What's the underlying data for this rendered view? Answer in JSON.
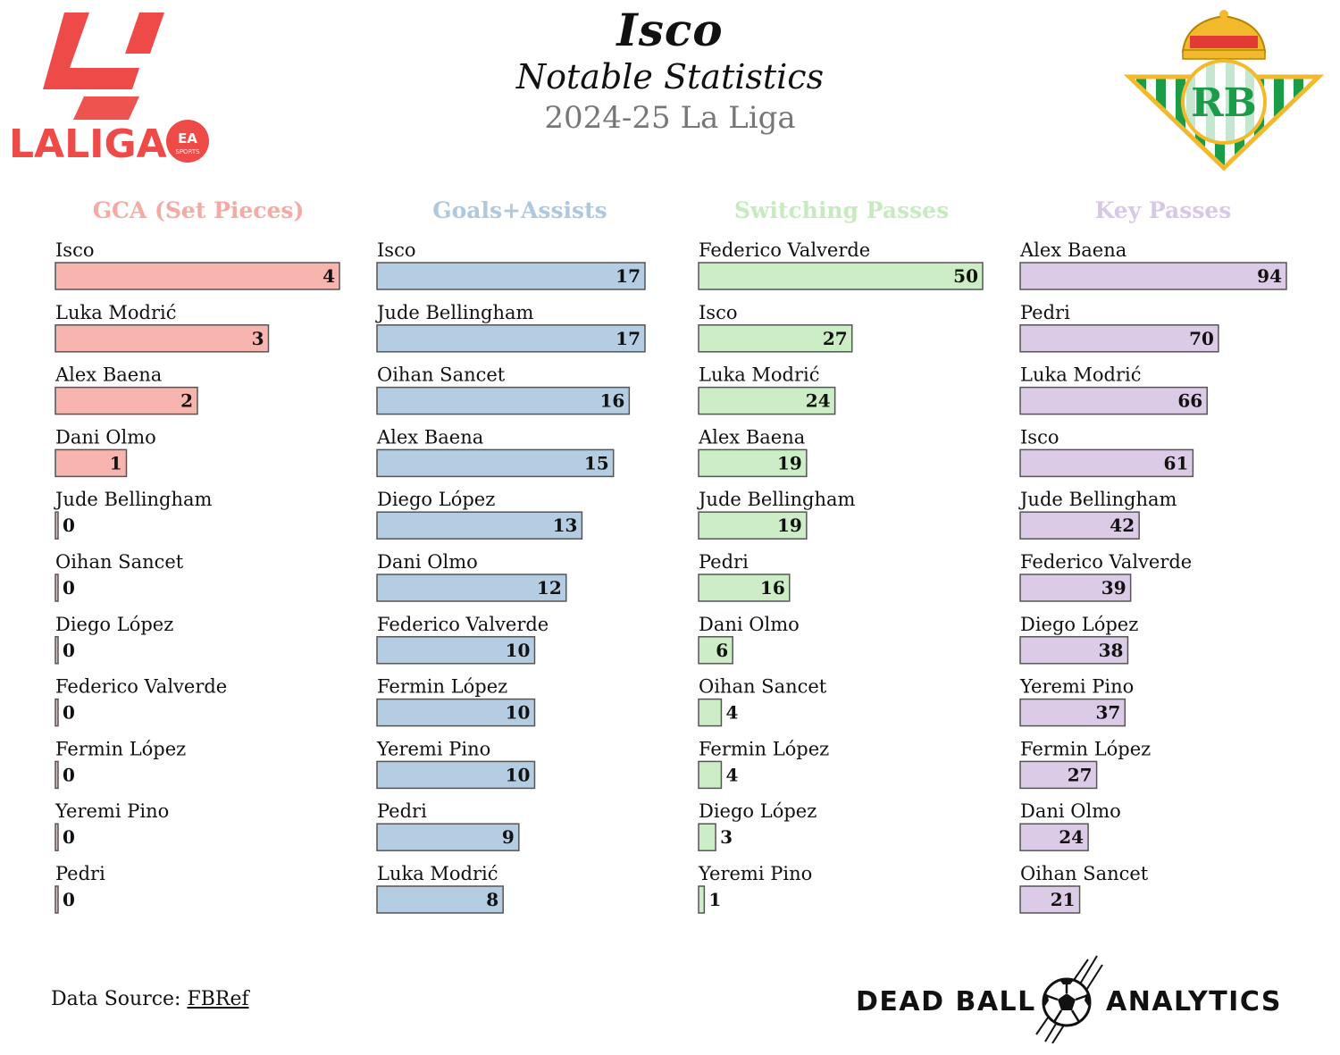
{
  "header": {
    "title": "Isco",
    "subtitle": "Notable Statistics",
    "season": "2024-25 La Liga"
  },
  "logos": {
    "league_text": "LALIGA",
    "league_badge_text": "EA",
    "league_badge_sub": "SPORTS",
    "club_monogram": "RB"
  },
  "footer": {
    "source_label": "Data Source: ",
    "source_link": "FBRef",
    "brand_left": "DEAD BALL",
    "brand_right": "ANALYTICS"
  },
  "colors": {
    "gca": "#f8b4ae",
    "ga": "#b5cde3",
    "switch": "#ccedc6",
    "key": "#dccbe6",
    "gca_title": "#f5aaa3",
    "ga_title": "#aec8e0",
    "switch_title": "#c6ebbf",
    "key_title": "#d9c7e8",
    "laliga_red": "#ee4a47",
    "betis_green": "#1a9c48",
    "crown_gold": "#f2b92c"
  },
  "chart_data": [
    {
      "type": "bar",
      "orientation": "horizontal",
      "title": "GCA (Set Pieces)",
      "color_key": "gca",
      "categories": [
        "Isco",
        "Luka Modrić",
        "Alex Baena",
        "Dani Olmo",
        "Jude Bellingham",
        "Oihan Sancet",
        "Diego López",
        "Federico Valverde",
        "Fermin López",
        "Yeremi Pino",
        "Pedri"
      ],
      "values": [
        4,
        3,
        2,
        1,
        0,
        0,
        0,
        0,
        0,
        0,
        0
      ],
      "xlim": [
        0,
        4
      ]
    },
    {
      "type": "bar",
      "orientation": "horizontal",
      "title": "Goals+Assists",
      "color_key": "ga",
      "categories": [
        "Isco",
        "Jude Bellingham",
        "Oihan Sancet",
        "Alex Baena",
        "Diego López",
        "Dani Olmo",
        "Federico Valverde",
        "Fermin López",
        "Yeremi Pino",
        "Pedri",
        "Luka Modrić"
      ],
      "values": [
        17,
        17,
        16,
        15,
        13,
        12,
        10,
        10,
        10,
        9,
        8
      ],
      "xlim": [
        0,
        17
      ]
    },
    {
      "type": "bar",
      "orientation": "horizontal",
      "title": "Switching Passes",
      "color_key": "switch",
      "categories": [
        "Federico Valverde",
        "Isco",
        "Luka Modrić",
        "Alex Baena",
        "Jude Bellingham",
        "Pedri",
        "Dani Olmo",
        "Oihan Sancet",
        "Fermin López",
        "Diego López",
        "Yeremi Pino"
      ],
      "values": [
        50,
        27,
        24,
        19,
        19,
        16,
        6,
        4,
        4,
        3,
        1
      ],
      "xlim": [
        0,
        50
      ]
    },
    {
      "type": "bar",
      "orientation": "horizontal",
      "title": "Key Passes",
      "color_key": "key",
      "categories": [
        "Alex Baena",
        "Pedri",
        "Luka Modrić",
        "Isco",
        "Jude Bellingham",
        "Federico Valverde",
        "Diego López",
        "Yeremi Pino",
        "Fermin López",
        "Dani Olmo",
        "Oihan Sancet"
      ],
      "values": [
        94,
        70,
        66,
        61,
        42,
        39,
        38,
        37,
        27,
        24,
        21
      ],
      "xlim": [
        0,
        94
      ]
    }
  ]
}
